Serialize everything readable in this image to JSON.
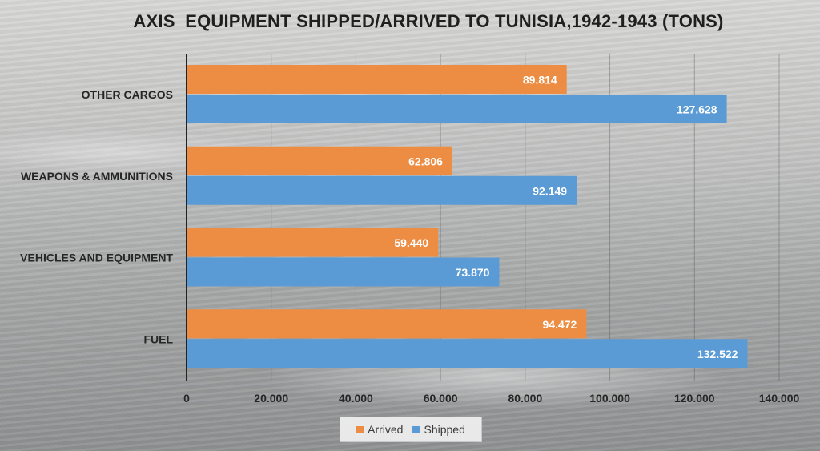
{
  "chart_data": {
    "type": "bar",
    "orientation": "horizontal",
    "title": "AXIS  EQUIPMENT SHIPPED/ARRIVED TO TUNISIA,1942-1943 (TONS)",
    "categories": [
      "OTHER CARGOS",
      "WEAPONS & AMMUNITIONS",
      "VEHICLES AND EQUIPMENT",
      "FUEL"
    ],
    "series": [
      {
        "name": "Arrived",
        "color": "#ed8d43",
        "values": [
          89814,
          62806,
          59440,
          94472
        ],
        "labels": [
          "89.814",
          "62.806",
          "59.440",
          "94.472"
        ]
      },
      {
        "name": "Shipped",
        "color": "#5b9bd5",
        "values": [
          127628,
          92149,
          73870,
          132522
        ],
        "labels": [
          "127.628",
          "92.149",
          "73.870",
          "132.522"
        ]
      }
    ],
    "xlim": [
      0,
      140000
    ],
    "xticks": [
      0,
      20000,
      40000,
      60000,
      80000,
      100000,
      120000,
      140000
    ],
    "xtick_labels": [
      "0",
      "20.000",
      "40.000",
      "60.000",
      "80.000",
      "100.000",
      "120.000",
      "140.000"
    ],
    "grid": true,
    "legend_position": "bottom"
  }
}
